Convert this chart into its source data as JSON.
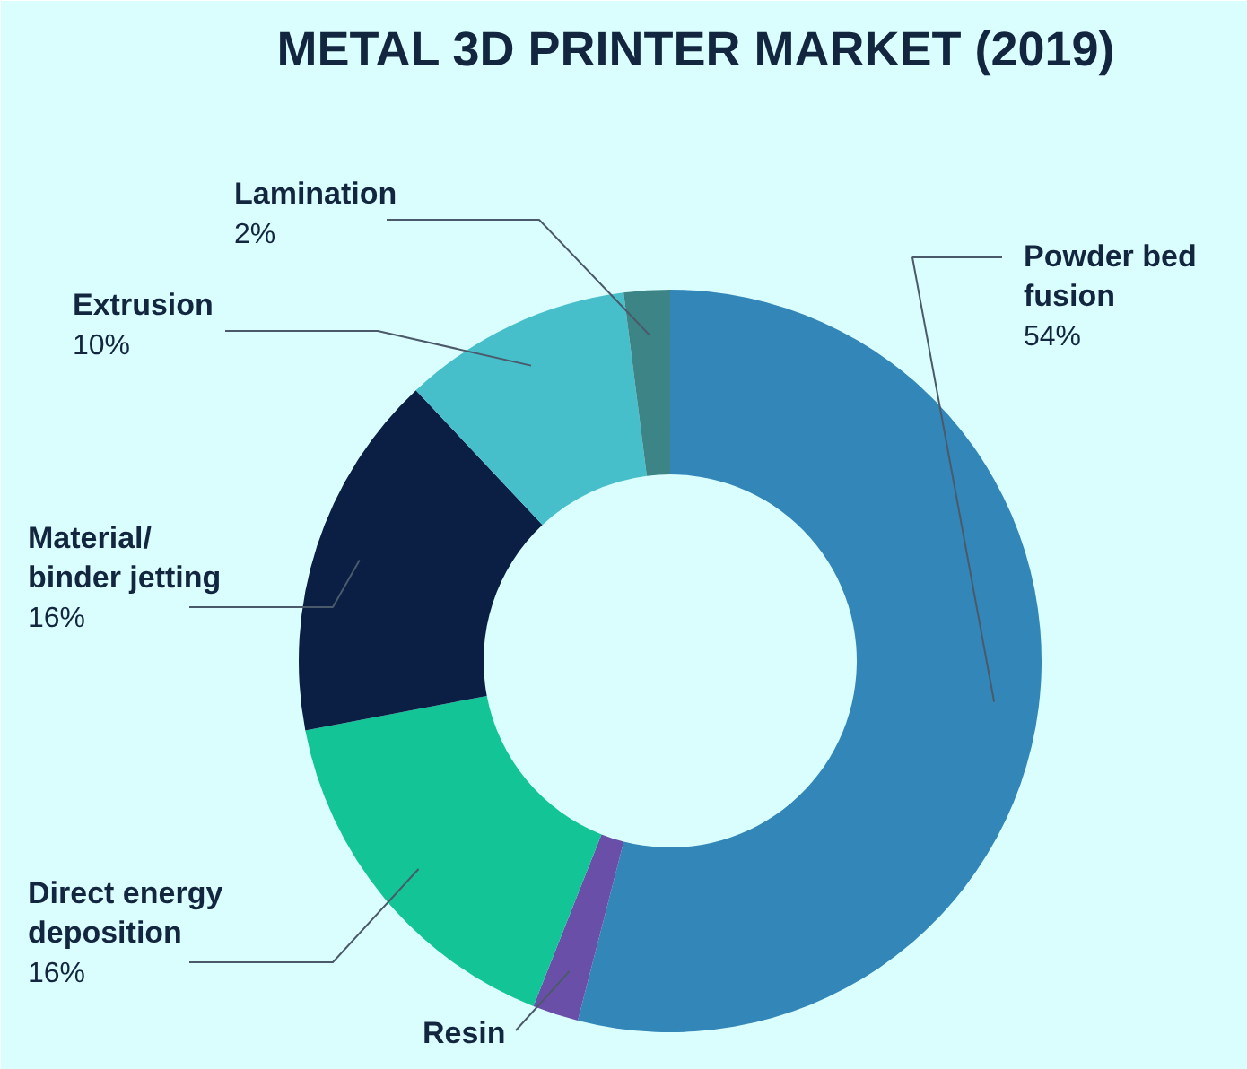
{
  "chart_data": {
    "type": "donut",
    "title": "METAL 3D PRINTER MARKET (2019)",
    "categories": [
      "Powder bed fusion",
      "Resin",
      "Direct energy deposition",
      "Material/ binder jetting",
      "Extrusion",
      "Lamination"
    ],
    "values": [
      54,
      2,
      16,
      16,
      10,
      2
    ],
    "colors": [
      "#3386b8",
      "#6a4fa8",
      "#12c496",
      "#0b1f45",
      "#47bfca",
      "#3d8486"
    ],
    "value_labels": [
      "54%",
      null,
      "16%",
      "16%",
      "10%",
      "2%"
    ]
  }
}
